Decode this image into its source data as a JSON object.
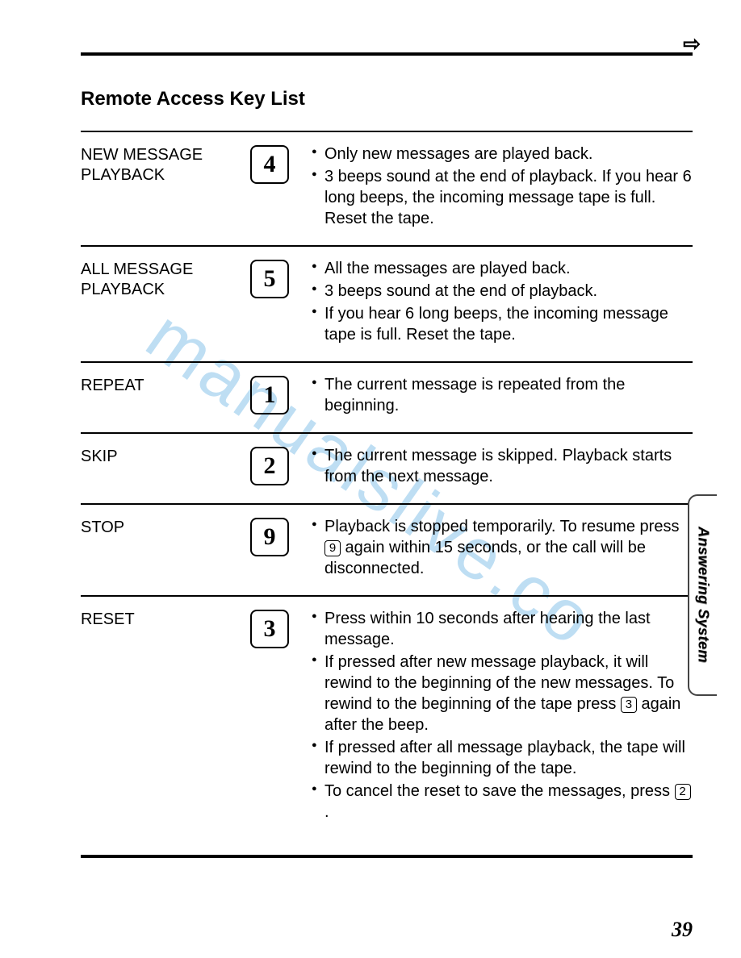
{
  "page_number": "39",
  "title": "Remote Access Key List",
  "side_tab": "Answering System",
  "watermark": "manualslive.co",
  "arrow_icon": "⇨",
  "rows": [
    {
      "label": "NEW MESSAGE\nPLAYBACK",
      "key": "4",
      "bullets": [
        {
          "text": "Only new messages are played back."
        },
        {
          "text": "3 beeps sound at the end of playback. If you hear 6 long beeps, the incoming message tape is full. Reset the tape."
        }
      ]
    },
    {
      "label": "ALL MESSAGE\nPLAYBACK",
      "key": "5",
      "bullets": [
        {
          "text": "All the messages are played back."
        },
        {
          "text": "3 beeps sound at the end of playback."
        },
        {
          "text": "If you hear 6 long beeps, the incoming message tape is full. Reset the tape."
        }
      ]
    },
    {
      "label": "REPEAT",
      "key": "1",
      "bullets": [
        {
          "text": "The current message is repeated from the beginning."
        }
      ]
    },
    {
      "label": "SKIP",
      "key": "2",
      "bullets": [
        {
          "text": "The current message is skipped. Playback starts from the next message."
        }
      ]
    },
    {
      "label": "STOP",
      "key": "9",
      "bullets": [
        {
          "pre": "Playback is stopped temporarily. To resume press ",
          "inline_key": "9",
          "post": " again within 15 seconds, or the call will be disconnected."
        }
      ]
    },
    {
      "label": "RESET",
      "key": "3",
      "bullets": [
        {
          "text": "Press within 10 seconds after hearing the last message."
        },
        {
          "pre": "If pressed after new message playback, it will rewind to the beginning of the new messages. To rewind to the beginning of the tape press ",
          "inline_key": "3",
          "post": " again after the beep."
        },
        {
          "text": "If pressed after all message playback, the tape will rewind to the beginning of the tape."
        },
        {
          "pre": "To cancel the reset to save the messages, press ",
          "inline_key": "2",
          "post": "."
        }
      ]
    }
  ]
}
